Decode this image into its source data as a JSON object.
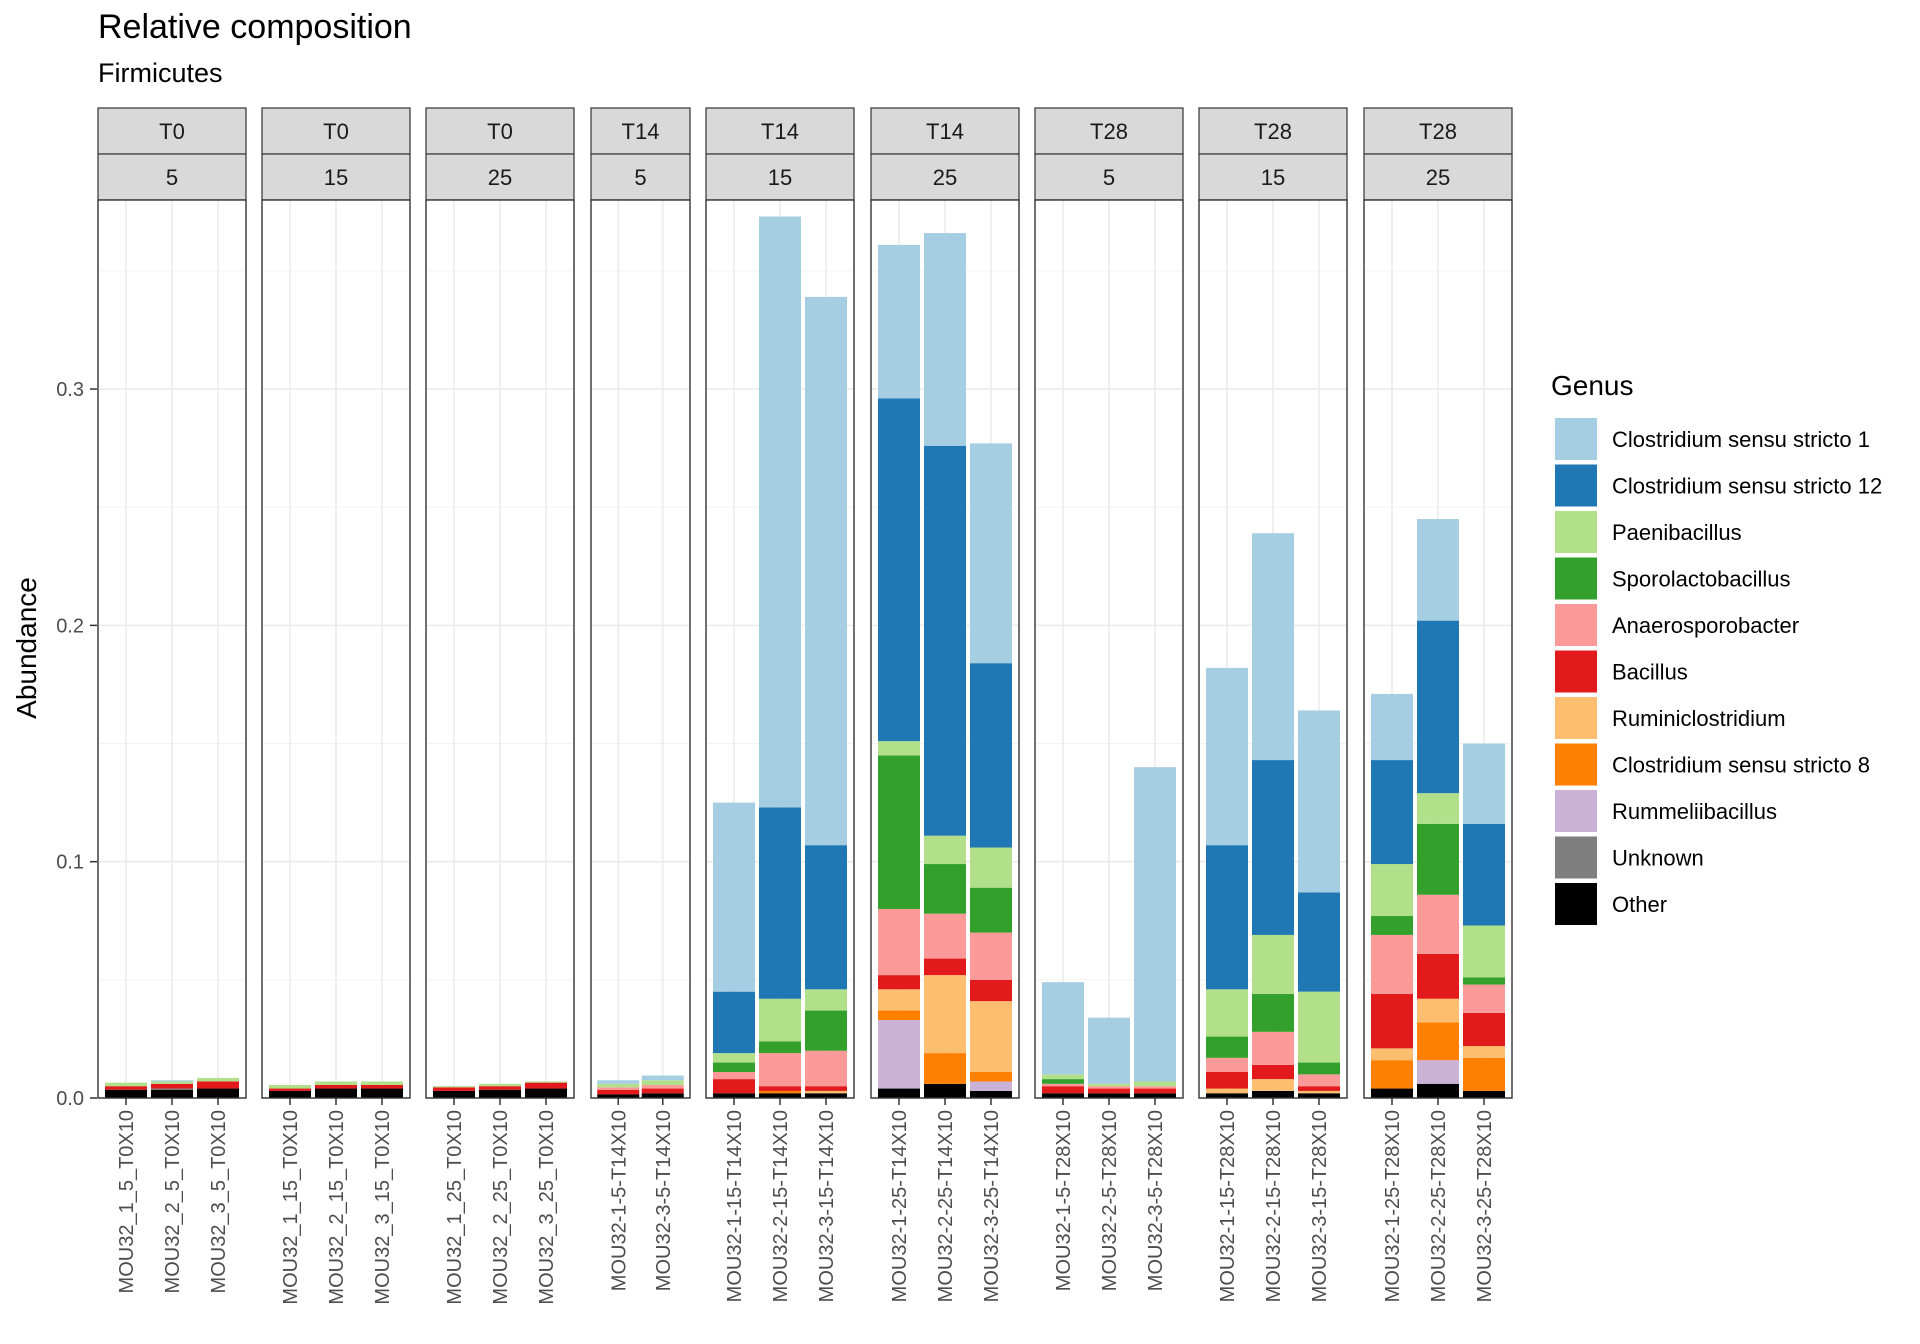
{
  "chart_data": {
    "type": "bar",
    "stacked": true,
    "title": "Relative composition",
    "subtitle": "Firmicutes",
    "xlabel": "",
    "ylabel": "Abundance",
    "ylim": [
      0,
      0.38
    ],
    "yticks": [
      0.0,
      0.1,
      0.2,
      0.3
    ],
    "ytick_labels": [
      "0.0",
      "0.1",
      "0.2",
      "0.3"
    ],
    "grid": true,
    "legend_position": "right",
    "legend_title": "Genus",
    "genera": [
      {
        "name": "Clostridium sensu stricto 1",
        "color": "#A6CEE3"
      },
      {
        "name": "Clostridium sensu stricto 12",
        "color": "#1F78B4"
      },
      {
        "name": "Paenibacillus",
        "color": "#B2DF8A"
      },
      {
        "name": "Sporolactobacillus",
        "color": "#33A02C"
      },
      {
        "name": "Anaerosporobacter",
        "color": "#FB9A99"
      },
      {
        "name": "Bacillus",
        "color": "#E31A1C"
      },
      {
        "name": "Ruminiclostridium",
        "color": "#FDBF6F"
      },
      {
        "name": "Clostridium sensu stricto 8",
        "color": "#FF7F00"
      },
      {
        "name": "Rummeliibacillus",
        "color": "#CAB2D6"
      },
      {
        "name": "Unknown",
        "color": "#7F7F7F"
      },
      {
        "name": "Other",
        "color": "#000000"
      }
    ],
    "panel_keys": [
      "time",
      "temp"
    ],
    "panels": [
      {
        "time": "T0",
        "temp": "5",
        "samples": [
          {
            "label": "MOU32_1_5_T0X10",
            "stack": [
              0,
              0,
              0.0015,
              0,
              0,
              0.0015,
              0,
              0,
              0,
              0,
              0.0035
            ]
          },
          {
            "label": "MOU32_2_5_T0X10",
            "stack": [
              0.0005,
              0,
              0.001,
              0,
              0,
              0.002,
              0,
              0,
              0,
              0.0005,
              0.0035
            ]
          },
          {
            "label": "MOU32_3_5_T0X10",
            "stack": [
              0,
              0,
              0.0015,
              0,
              0,
              0.003,
              0,
              0,
              0,
              0,
              0.004
            ]
          }
        ]
      },
      {
        "time": "T0",
        "temp": "15",
        "samples": [
          {
            "label": "MOU32_1_15_T0X10",
            "stack": [
              0,
              0,
              0.0015,
              0,
              0,
              0.001,
              0,
              0,
              0,
              0,
              0.003
            ]
          },
          {
            "label": "MOU32_2_15_T0X10",
            "stack": [
              0,
              0,
              0.0015,
              0,
              0,
              0.0015,
              0,
              0,
              0,
              0,
              0.004
            ]
          },
          {
            "label": "MOU32_3_15_T0X10",
            "stack": [
              0,
              0,
              0.0015,
              0,
              0,
              0.0015,
              0,
              0,
              0,
              0,
              0.004
            ]
          }
        ]
      },
      {
        "time": "T0",
        "temp": "25",
        "samples": [
          {
            "label": "MOU32_1_25_T0X10",
            "stack": [
              0,
              0,
              0.0005,
              0,
              0,
              0.0015,
              0,
              0,
              0,
              0,
              0.003
            ]
          },
          {
            "label": "MOU32_2_25_T0X10",
            "stack": [
              0,
              0,
              0.001,
              0,
              0,
              0.0015,
              0,
              0,
              0,
              0,
              0.0035
            ]
          },
          {
            "label": "MOU32_3_25_T0X10",
            "stack": [
              0,
              0,
              0.0005,
              0,
              0,
              0.0025,
              0,
              0,
              0,
              0,
              0.004
            ]
          }
        ]
      },
      {
        "time": "T14",
        "temp": "5",
        "samples": [
          {
            "label": "MOU32-1-5-T14X10",
            "stack": [
              0.0015,
              0,
              0.0015,
              0,
              0.001,
              0.002,
              0,
              0,
              0,
              0,
              0.0015
            ]
          },
          {
            "label": "MOU32-3-5-T14X10",
            "stack": [
              0.002,
              0,
              0.002,
              0,
              0.0015,
              0.002,
              0,
              0,
              0,
              0,
              0.002
            ]
          }
        ]
      },
      {
        "time": "T14",
        "temp": "15",
        "samples": [
          {
            "label": "MOU32-1-15-T14X10",
            "stack": [
              0.08,
              0.026,
              0.004,
              0.004,
              0.003,
              0.006,
              0,
              0,
              0,
              0,
              0.002
            ]
          },
          {
            "label": "MOU32-2-15-T14X10",
            "stack": [
              0.25,
              0.081,
              0.018,
              0.005,
              0.014,
              0.002,
              0,
              0.001,
              0,
              0,
              0.002
            ]
          },
          {
            "label": "MOU32-3-15-T14X10",
            "stack": [
              0.232,
              0.061,
              0.009,
              0.017,
              0.015,
              0.002,
              0.001,
              0,
              0,
              0,
              0.002
            ]
          }
        ]
      },
      {
        "time": "T14",
        "temp": "25",
        "samples": [
          {
            "label": "MOU32-1-25-T14X10",
            "stack": [
              0.065,
              0.145,
              0.006,
              0.065,
              0.028,
              0.006,
              0.009,
              0.004,
              0.029,
              0,
              0.004
            ]
          },
          {
            "label": "MOU32-2-25-T14X10",
            "stack": [
              0.09,
              0.165,
              0.012,
              0.021,
              0.019,
              0.007,
              0.033,
              0.013,
              0,
              0,
              0.006
            ]
          },
          {
            "label": "MOU32-3-25-T14X10",
            "stack": [
              0.093,
              0.078,
              0.017,
              0.019,
              0.02,
              0.009,
              0.03,
              0.004,
              0.004,
              0,
              0.003
            ]
          }
        ]
      },
      {
        "time": "T28",
        "temp": "5",
        "samples": [
          {
            "label": "MOU32-1-5-T28X10",
            "stack": [
              0.039,
              0,
              0.002,
              0.002,
              0.001,
              0.003,
              0,
              0,
              0,
              0,
              0.002
            ]
          },
          {
            "label": "MOU32-2-5-T28X10",
            "stack": [
              0.028,
              0,
              0.001,
              0,
              0.001,
              0.002,
              0,
              0,
              0,
              0,
              0.002
            ]
          },
          {
            "label": "MOU32-3-5-T28X10",
            "stack": [
              0.133,
              0,
              0.002,
              0,
              0.001,
              0.002,
              0,
              0,
              0,
              0,
              0.002
            ]
          }
        ]
      },
      {
        "time": "T28",
        "temp": "15",
        "samples": [
          {
            "label": "MOU32-1-15-T28X10",
            "stack": [
              0.075,
              0.061,
              0.02,
              0.009,
              0.006,
              0.007,
              0.002,
              0,
              0,
              0,
              0.002
            ]
          },
          {
            "label": "MOU32-2-15-T28X10",
            "stack": [
              0.096,
              0.074,
              0.025,
              0.016,
              0.014,
              0.006,
              0.005,
              0,
              0,
              0,
              0.003
            ]
          },
          {
            "label": "MOU32-3-15-T28X10",
            "stack": [
              0.077,
              0.042,
              0.03,
              0.005,
              0.005,
              0.002,
              0.001,
              0,
              0,
              0,
              0.002
            ]
          }
        ]
      },
      {
        "time": "T28",
        "temp": "25",
        "samples": [
          {
            "label": "MOU32-1-25-T28X10",
            "stack": [
              0.028,
              0.044,
              0.022,
              0.008,
              0.025,
              0.023,
              0.005,
              0.012,
              0,
              0,
              0.004
            ]
          },
          {
            "label": "MOU32-2-25-T28X10",
            "stack": [
              0.043,
              0.073,
              0.013,
              0.03,
              0.025,
              0.019,
              0.01,
              0.016,
              0.01,
              0,
              0.006
            ]
          },
          {
            "label": "MOU32-3-25-T28X10",
            "stack": [
              0.034,
              0.043,
              0.022,
              0.003,
              0.012,
              0.014,
              0.005,
              0.014,
              0,
              0,
              0.003
            ]
          }
        ]
      }
    ]
  }
}
